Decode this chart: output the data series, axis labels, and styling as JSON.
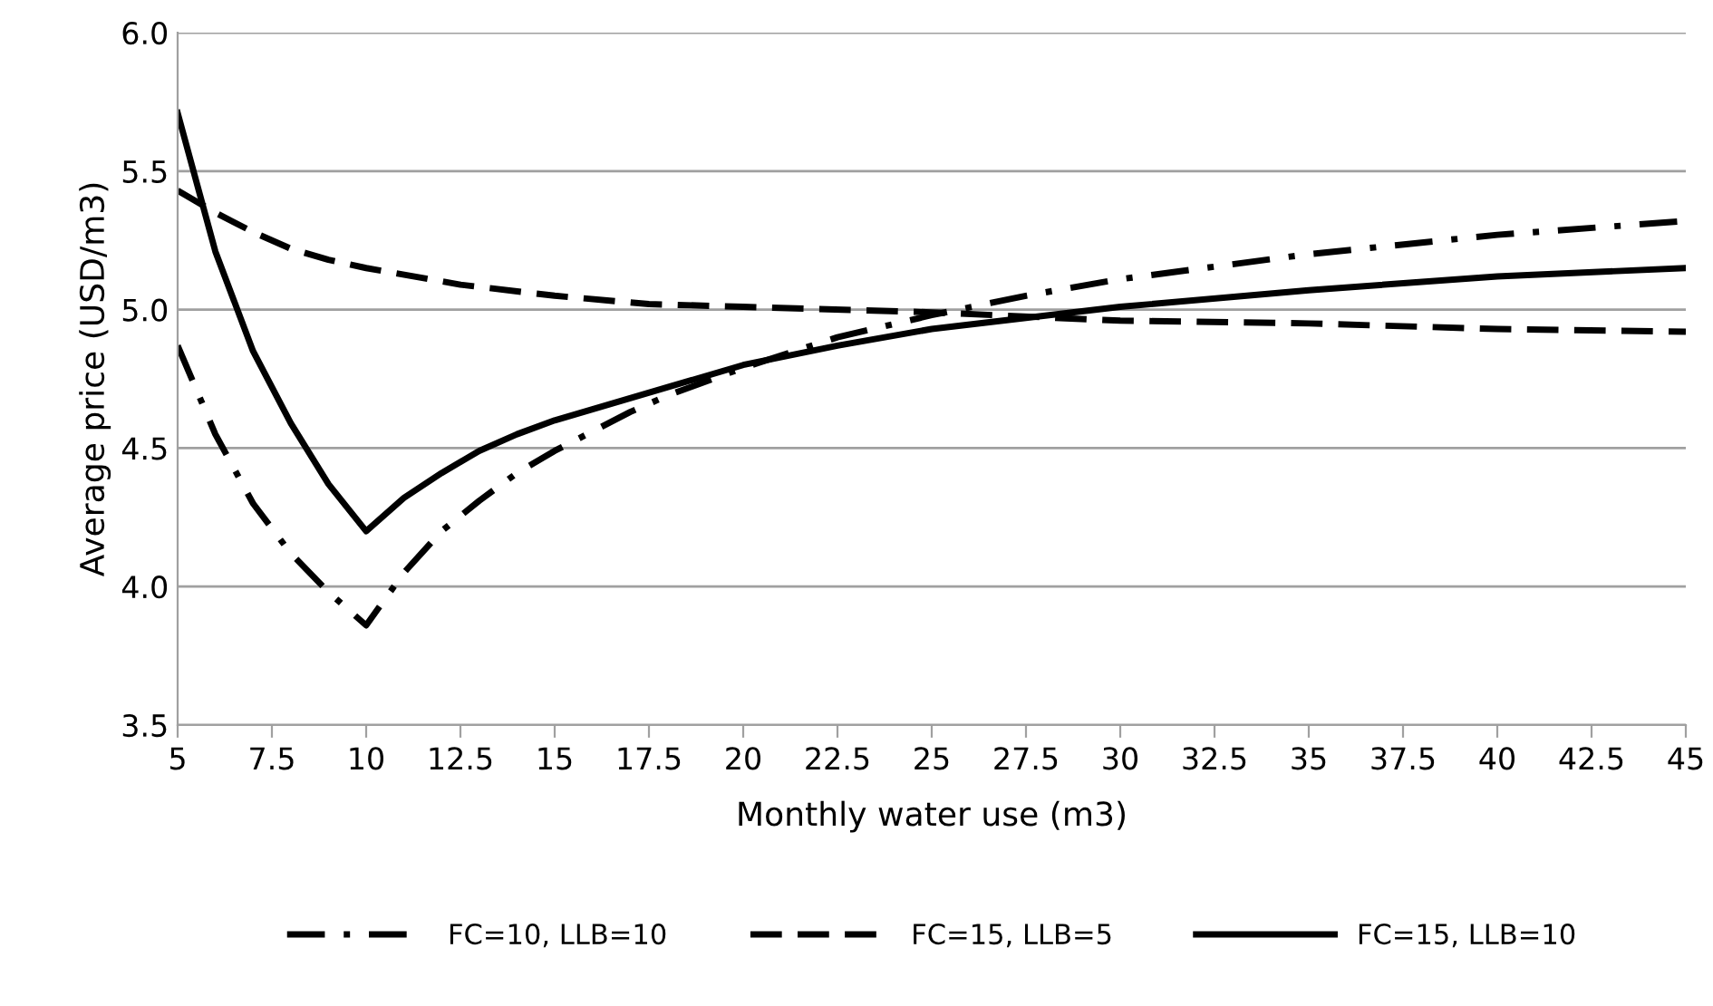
{
  "chart_data": {
    "type": "line",
    "xlabel": "Monthly water use (m3)",
    "ylabel": "Average price (USD/m3)",
    "xlim": [
      5,
      45
    ],
    "xticks": [
      5,
      7.5,
      10,
      12.5,
      15,
      17.5,
      20,
      22.5,
      25,
      27.5,
      30,
      32.5,
      35,
      37.5,
      40,
      42.5,
      45
    ],
    "ylim": [
      3.5,
      6
    ],
    "yticks": [
      3.5,
      {
        "value": 4,
        "label": "4.0"
      },
      4.5,
      {
        "value": 5,
        "label": "5.0"
      },
      5.5,
      {
        "value": 6,
        "label": "6.0"
      }
    ],
    "grid": "y",
    "legend": "bottom",
    "marker": "none",
    "series": [
      {
        "name": "FC=10, LLB=10",
        "color": "#000000",
        "line_style": "dashdot",
        "x": [
          5,
          6,
          7,
          8,
          9,
          10,
          11,
          12,
          13,
          14,
          15,
          16,
          17,
          18,
          20,
          22.5,
          25,
          27.5,
          30,
          35,
          40,
          45
        ],
        "values": [
          4.87,
          4.55,
          4.3,
          4.12,
          3.98,
          3.86,
          4.05,
          4.2,
          4.31,
          4.41,
          4.49,
          4.56,
          4.63,
          4.69,
          4.79,
          4.9,
          4.98,
          5.05,
          5.11,
          5.2,
          5.27,
          5.32
        ]
      },
      {
        "name": "FC=15, LLB=5",
        "color": "#000000",
        "line_style": "dashed",
        "x": [
          5,
          6,
          7,
          8,
          9,
          10,
          12.5,
          15,
          17.5,
          20,
          25,
          30,
          35,
          40,
          45
        ],
        "values": [
          5.43,
          5.35,
          5.28,
          5.22,
          5.18,
          5.15,
          5.09,
          5.05,
          5.02,
          5.01,
          4.99,
          4.96,
          4.95,
          4.93,
          4.92
        ]
      },
      {
        "name": "FC=15, LLB=10",
        "color": "#000000",
        "line_style": "solid",
        "x": [
          5,
          6,
          7,
          8,
          9,
          10,
          11,
          12,
          13,
          14,
          15,
          16,
          17,
          18,
          20,
          22.5,
          25,
          27.5,
          30,
          35,
          40,
          45
        ],
        "values": [
          5.71,
          5.21,
          4.85,
          4.59,
          4.37,
          4.2,
          4.32,
          4.41,
          4.49,
          4.55,
          4.6,
          4.64,
          4.68,
          4.72,
          4.8,
          4.87,
          4.93,
          4.97,
          5.01,
          5.07,
          5.12,
          5.15
        ]
      }
    ]
  }
}
